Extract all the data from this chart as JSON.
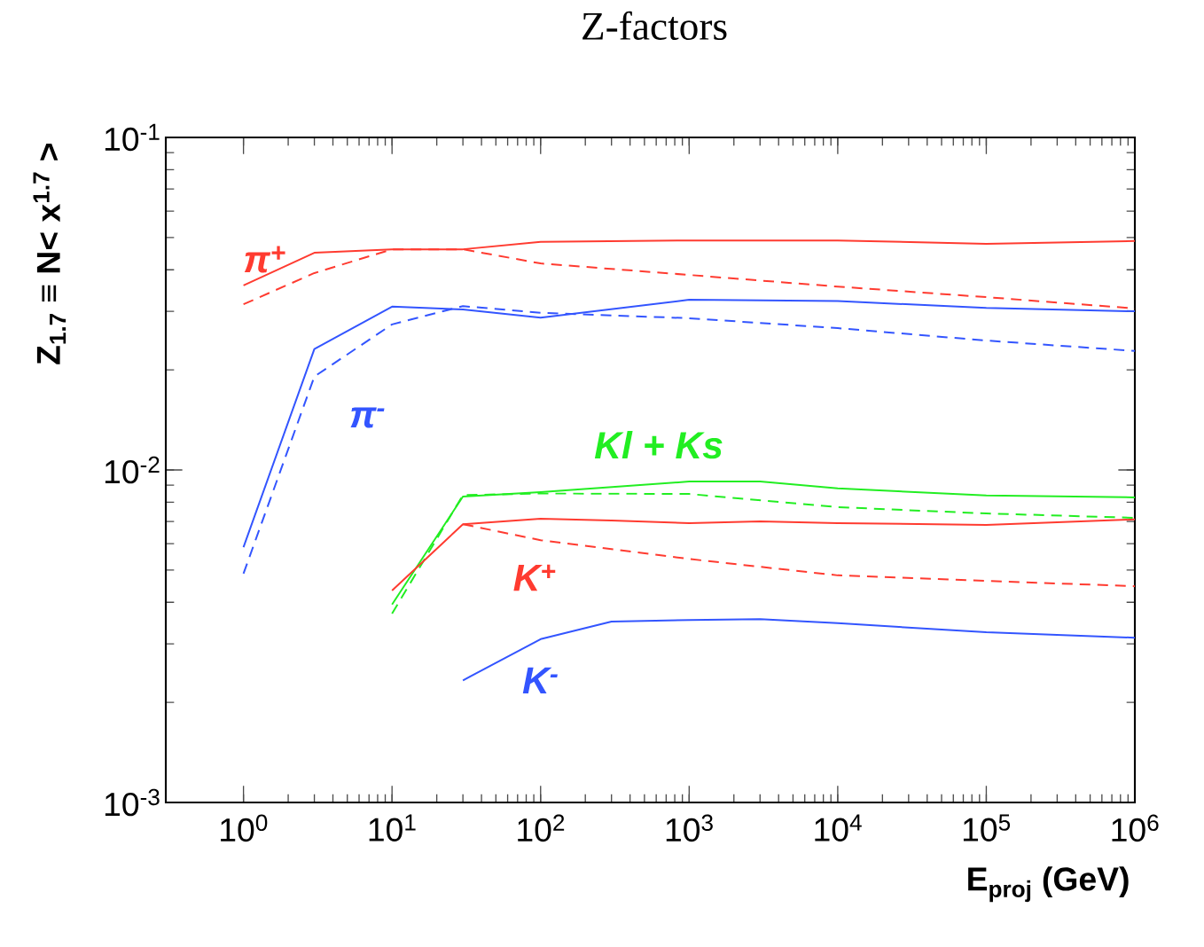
{
  "chart_data": {
    "type": "line",
    "title": "Z-factors",
    "xlabel": "E$_{proj}$ (GeV)",
    "ylabel": "Z$_{1.7}$ ≡ N< x$^{1.7}$ >",
    "log": "xy",
    "xlim": [
      0.3,
      1000000
    ],
    "ylim": [
      0.001,
      0.1
    ],
    "xticks": [
      {
        "value": 1,
        "label": "10$^{0}$"
      },
      {
        "value": 10,
        "label": "10$^{1}$"
      },
      {
        "value": 100,
        "label": "10$^{2}$"
      },
      {
        "value": 1000,
        "label": "10$^{3}$"
      },
      {
        "value": 10000,
        "label": "10$^{4}$"
      },
      {
        "value": 100000,
        "label": "10$^{5}$"
      },
      {
        "value": 1000000,
        "label": "10$^{6}$"
      }
    ],
    "yticks": [
      {
        "value": 0.001,
        "label": "10$^{-3}$"
      },
      {
        "value": 0.01,
        "label": "10$^{-2}$"
      },
      {
        "value": 0.1,
        "label": "10$^{-1}$"
      }
    ],
    "series": [
      {
        "name": "π$^{+}$",
        "color": "#ff3b30",
        "line_style": "solid",
        "x": [
          1,
          3,
          10,
          30,
          100,
          1000,
          10000,
          100000,
          1000000
        ],
        "values": [
          0.0359,
          0.045,
          0.0461,
          0.0461,
          0.0485,
          0.049,
          0.049,
          0.0479,
          0.0488
        ]
      },
      {
        "color": "#ff3b30",
        "line_style": "dashed",
        "x": [
          1,
          3,
          10,
          30,
          100,
          1000,
          10000,
          100000,
          1000000
        ],
        "values": [
          0.0315,
          0.0391,
          0.0461,
          0.0461,
          0.0418,
          0.0386,
          0.0356,
          0.0331,
          0.0306
        ]
      },
      {
        "name": "π$^{-}$",
        "color": "#3355ff",
        "line_style": "solid",
        "x": [
          1,
          3,
          10,
          30,
          100,
          1000,
          10000,
          100000,
          1000000
        ],
        "values": [
          0.00586,
          0.0231,
          0.031,
          0.0304,
          0.0287,
          0.0325,
          0.0322,
          0.0307,
          0.03
        ]
      },
      {
        "color": "#3355ff",
        "line_style": "dashed",
        "x": [
          1,
          3,
          10,
          30,
          100,
          1000,
          10000,
          100000,
          1000000
        ],
        "values": [
          0.00488,
          0.0191,
          0.0274,
          0.0311,
          0.0297,
          0.0286,
          0.0267,
          0.0245,
          0.0228
        ]
      },
      {
        "name": "Kl + Ks",
        "color": "#22ee22",
        "line_style": "solid",
        "x": [
          10,
          30,
          100,
          1000,
          3000,
          10000,
          100000,
          1000000
        ],
        "values": [
          0.00394,
          0.00832,
          0.00858,
          0.00923,
          0.00923,
          0.0088,
          0.00838,
          0.00827
        ]
      },
      {
        "color": "#22ee22",
        "line_style": "dashed",
        "x": [
          10,
          30,
          100,
          1000,
          10000,
          100000,
          1000000
        ],
        "values": [
          0.0037,
          0.0084,
          0.0085,
          0.00847,
          0.00773,
          0.0074,
          0.00718
        ]
      },
      {
        "name": "K$^{+}$",
        "color": "#ff3b30",
        "line_style": "solid",
        "x": [
          10,
          30,
          100,
          300,
          1000,
          3000,
          10000,
          100000,
          1000000
        ],
        "values": [
          0.00434,
          0.00687,
          0.00714,
          0.00705,
          0.00692,
          0.007,
          0.00692,
          0.00684,
          0.0071
        ]
      },
      {
        "color": "#ff3b30",
        "line_style": "dashed",
        "x": [
          30,
          100,
          1000,
          10000,
          100000,
          1000000
        ],
        "values": [
          0.00687,
          0.00615,
          0.0054,
          0.00482,
          0.00464,
          0.00447
        ]
      },
      {
        "name": "K$^{-}$",
        "color": "#3355ff",
        "line_style": "solid",
        "x": [
          30,
          100,
          300,
          1000,
          3000,
          10000,
          100000,
          1000000
        ],
        "values": [
          0.00233,
          0.0031,
          0.0035,
          0.00354,
          0.00356,
          0.00346,
          0.00325,
          0.00313
        ]
      }
    ]
  }
}
